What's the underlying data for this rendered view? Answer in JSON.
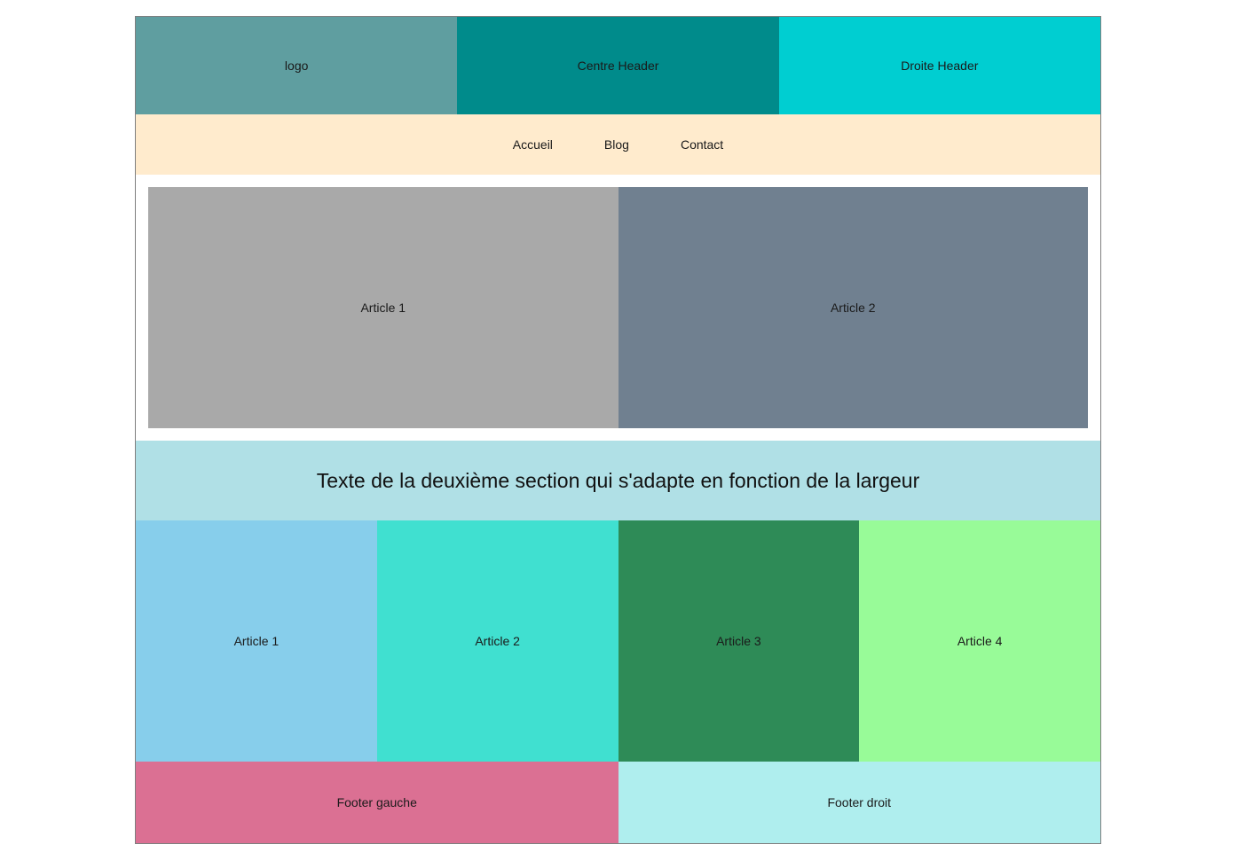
{
  "header": {
    "left": "logo",
    "center": "Centre Header",
    "right": "Droite Header"
  },
  "nav": {
    "items": [
      {
        "label": "Accueil"
      },
      {
        "label": "Blog"
      },
      {
        "label": "Contact"
      }
    ]
  },
  "section1": {
    "articles": [
      {
        "label": "Article 1"
      },
      {
        "label": "Article 2"
      }
    ]
  },
  "section2": {
    "text": "Texte de la deuxième section qui s'adapte en fonction de la largeur"
  },
  "section3": {
    "articles": [
      {
        "label": "Article 1"
      },
      {
        "label": "Article 2"
      },
      {
        "label": "Article 3"
      },
      {
        "label": "Article 4"
      }
    ]
  },
  "footer": {
    "left": "Footer gauche",
    "right": "Footer droit"
  },
  "colors": {
    "header_left": "#5f9ea0",
    "header_center": "#008b8b",
    "header_right": "#00ced1",
    "nav_bg": "#ffebcd",
    "s1_article1": "#a9a9a9",
    "s1_article2": "#708090",
    "section2_bg": "#b0e0e6",
    "s3_article1": "#87ceeb",
    "s3_article2": "#40e0d0",
    "s3_article3": "#2e8b57",
    "s3_article4": "#98fb98",
    "footer_left": "#db7093",
    "footer_right": "#afeeee"
  }
}
